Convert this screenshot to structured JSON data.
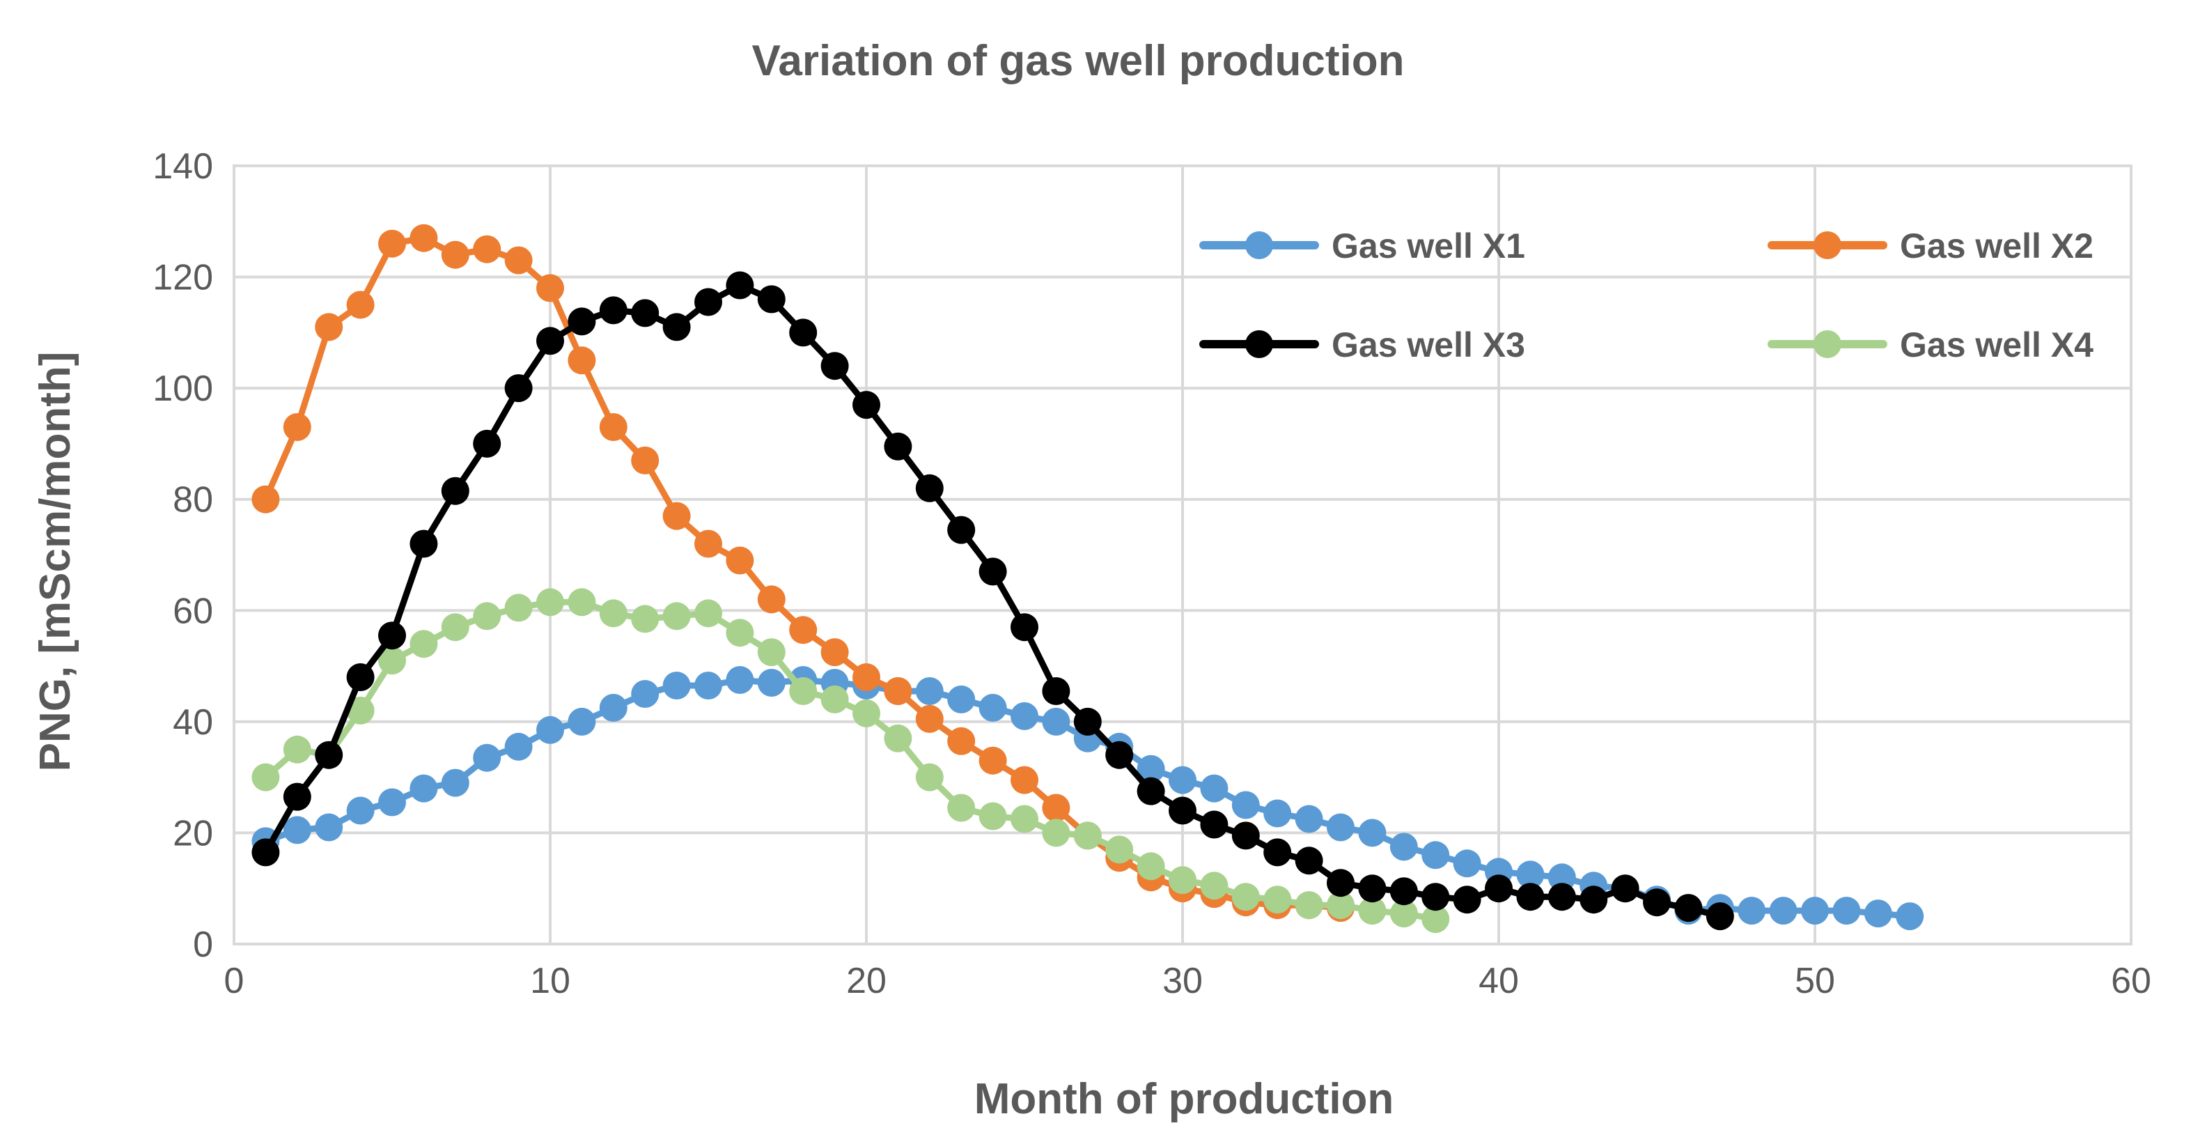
{
  "chart_data": {
    "type": "line",
    "title": "Variation of gas well production",
    "xlabel": "Month of production",
    "ylabel": "PNG, [mScm/month]",
    "xlim": [
      0,
      60
    ],
    "ylim": [
      0,
      140
    ],
    "xticks": [
      0,
      10,
      20,
      30,
      40,
      50,
      60
    ],
    "yticks": [
      0,
      20,
      40,
      60,
      80,
      100,
      120,
      140
    ],
    "grid": true,
    "legend_position": "top-right",
    "series": [
      {
        "name": "Gas well X1",
        "color": "#5b9bd5",
        "x": [
          1,
          2,
          3,
          4,
          5,
          6,
          7,
          8,
          9,
          10,
          11,
          12,
          13,
          14,
          15,
          16,
          17,
          18,
          19,
          20,
          21,
          22,
          23,
          24,
          25,
          26,
          27,
          28,
          29,
          30,
          31,
          32,
          33,
          34,
          35,
          36,
          37,
          38,
          39,
          40,
          41,
          42,
          43,
          44,
          45,
          46,
          47,
          48,
          49,
          50,
          51,
          52,
          53
        ],
        "values": [
          18.5,
          20.5,
          21,
          24,
          25.5,
          28,
          29,
          33.5,
          35.5,
          38.5,
          40,
          42.5,
          45,
          46.5,
          46.5,
          47.5,
          47,
          47.5,
          47,
          46.5,
          45.5,
          45.5,
          44,
          42.5,
          41,
          40,
          37,
          35.5,
          31.5,
          29.5,
          28,
          25,
          23.5,
          22.5,
          21,
          20,
          17.5,
          16,
          14.5,
          13,
          12.5,
          12,
          10.5,
          10,
          8,
          6,
          6.5,
          6,
          6,
          6,
          6,
          5.5,
          5
        ]
      },
      {
        "name": "Gas well X2",
        "color": "#ed7d31",
        "x": [
          1,
          2,
          3,
          4,
          5,
          6,
          7,
          8,
          9,
          10,
          11,
          12,
          13,
          14,
          15,
          16,
          17,
          18,
          19,
          20,
          21,
          22,
          23,
          24,
          25,
          26,
          27,
          28,
          29,
          30,
          31,
          32,
          33,
          34,
          35
        ],
        "values": [
          80,
          93,
          111,
          115,
          126,
          127,
          124,
          125,
          123,
          118,
          105,
          93,
          87,
          77,
          72,
          69,
          62,
          56.5,
          52.5,
          48,
          45.5,
          40.5,
          36.5,
          33,
          29.5,
          24.5,
          19.5,
          15.5,
          12,
          10,
          9,
          7.5,
          7,
          7,
          6.5
        ]
      },
      {
        "name": "Gas well X3",
        "color": "#000000",
        "x": [
          1,
          2,
          3,
          4,
          5,
          6,
          7,
          8,
          9,
          10,
          11,
          12,
          13,
          14,
          15,
          16,
          17,
          18,
          19,
          20,
          21,
          22,
          23,
          24,
          25,
          26,
          27,
          28,
          29,
          30,
          31,
          32,
          33,
          34,
          35,
          36,
          37,
          38,
          39,
          40,
          41,
          42,
          43,
          44,
          45,
          46,
          47
        ],
        "values": [
          16.5,
          26.5,
          34,
          48,
          55.5,
          72,
          81.5,
          90,
          100,
          108.5,
          112,
          114,
          113.5,
          111,
          115.5,
          118.5,
          116,
          110,
          104,
          97,
          89.5,
          82,
          74.5,
          67,
          57,
          45.5,
          40,
          34,
          27.5,
          24,
          21.5,
          19.5,
          16.5,
          15,
          11,
          10,
          9.5,
          8.5,
          8,
          10,
          8.5,
          8.5,
          8,
          10,
          7.5,
          6.5,
          5
        ]
      },
      {
        "name": "Gas well X4",
        "color": "#a9d18e",
        "x": [
          1,
          2,
          3,
          4,
          5,
          6,
          7,
          8,
          9,
          10,
          11,
          12,
          13,
          14,
          15,
          16,
          17,
          18,
          19,
          20,
          21,
          22,
          23,
          24,
          25,
          26,
          27,
          28,
          29,
          30,
          31,
          32,
          33,
          34,
          35,
          36,
          37,
          38
        ],
        "values": [
          30,
          35,
          34,
          42,
          51,
          54,
          57,
          59,
          60.5,
          61.5,
          61.5,
          59.5,
          58.5,
          59,
          59.5,
          56,
          52.5,
          45.5,
          44,
          41.5,
          37,
          30,
          24.5,
          23,
          22.5,
          20,
          19.5,
          17,
          14,
          11.5,
          10.5,
          8.5,
          8,
          7,
          7,
          6,
          5.5,
          4.5
        ]
      }
    ]
  }
}
